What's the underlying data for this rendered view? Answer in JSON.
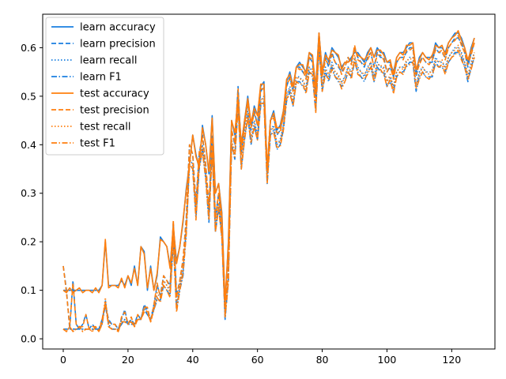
{
  "chart_data": {
    "type": "line",
    "title": "",
    "xlabel": "",
    "ylabel": "",
    "xlim": [
      -6.35,
      133.35
    ],
    "ylim": [
      -0.021,
      0.669
    ],
    "xticks": [
      0,
      20,
      40,
      60,
      80,
      100,
      120
    ],
    "yticks": [
      0.0,
      0.1,
      0.2,
      0.3,
      0.4,
      0.5,
      0.6
    ],
    "ytick_labels": [
      "0.0",
      "0.1",
      "0.2",
      "0.3",
      "0.4",
      "0.5",
      "0.6"
    ],
    "legend_position": "top-left",
    "grid": false,
    "colors": {
      "learn": "#1f77b4",
      "test": "#ff7f0e",
      "learn_bright": "#1a7fe0"
    },
    "series_labels": [
      {
        "name": "learn accuracy",
        "color": "#1a7fe0",
        "dash": "solid"
      },
      {
        "name": "learn precision",
        "color": "#1a7fe0",
        "dash": "dashed"
      },
      {
        "name": "learn recall",
        "color": "#1a7fe0",
        "dash": "dotted"
      },
      {
        "name": "learn F1",
        "color": "#1a7fe0",
        "dash": "dashdot"
      },
      {
        "name": "test accuracy",
        "color": "#ff7f0e",
        "dash": "solid"
      },
      {
        "name": "test precision",
        "color": "#ff7f0e",
        "dash": "dashed"
      },
      {
        "name": "test recall",
        "color": "#ff7f0e",
        "dash": "dotted"
      },
      {
        "name": "test F1",
        "color": "#ff7f0e",
        "dash": "dashdot"
      }
    ],
    "x_start": 0,
    "accuracy_values": [
      0.1,
      0.1,
      0.1,
      0.1,
      0.1,
      0.1,
      0.1,
      0.1,
      0.1,
      0.1,
      0.1,
      0.1,
      0.11,
      0.2,
      0.11,
      0.11,
      0.11,
      0.11,
      0.12,
      0.11,
      0.13,
      0.11,
      0.15,
      0.11,
      0.19,
      0.18,
      0.1,
      0.15,
      0.1,
      0.13,
      0.21,
      0.2,
      0.19,
      0.15,
      0.23,
      0.16,
      0.19,
      0.24,
      0.31,
      0.36,
      0.42,
      0.38,
      0.35,
      0.44,
      0.4,
      0.34,
      0.46,
      0.3,
      0.32,
      0.26,
      0.07,
      0.2,
      0.45,
      0.42,
      0.5,
      0.4,
      0.45,
      0.5,
      0.44,
      0.48,
      0.46,
      0.52,
      0.53,
      0.35,
      0.45,
      0.47,
      0.43,
      0.44,
      0.47,
      0.53,
      0.55,
      0.52,
      0.56,
      0.57,
      0.56,
      0.55,
      0.59,
      0.58,
      0.52,
      0.63,
      0.55,
      0.59,
      0.57,
      0.6,
      0.59,
      0.58,
      0.56,
      0.57,
      0.57,
      0.58,
      0.59,
      0.59,
      0.58,
      0.57,
      0.59,
      0.6,
      0.58,
      0.6,
      0.59,
      0.59,
      0.57,
      0.57,
      0.55,
      0.58,
      0.59,
      0.59,
      0.6,
      0.61,
      0.61,
      0.55,
      0.58,
      0.59,
      0.58,
      0.58,
      0.58,
      0.61,
      0.6,
      0.6,
      0.59,
      0.61,
      0.62,
      0.63,
      0.63,
      0.62,
      0.6,
      0.57,
      0.6,
      0.62
    ],
    "precision_values": [
      0.15,
      0.1,
      0.02,
      0.12,
      0.03,
      0.02,
      0.03,
      0.05,
      0.02,
      0.03,
      0.02,
      0.02,
      0.04,
      0.07,
      0.04,
      0.03,
      0.03,
      0.02,
      0.04,
      0.06,
      0.03,
      0.04,
      0.03,
      0.05,
      0.04,
      0.07,
      0.06,
      0.04,
      0.07,
      0.11,
      0.09,
      0.13,
      0.12,
      0.11,
      0.24,
      0.09,
      0.12,
      0.16,
      0.25,
      0.4,
      0.38,
      0.28,
      0.38,
      0.42,
      0.36,
      0.27,
      0.42,
      0.25,
      0.3,
      0.24,
      0.05,
      0.15,
      0.43,
      0.4,
      0.52,
      0.38,
      0.44,
      0.49,
      0.43,
      0.47,
      0.44,
      0.51,
      0.52,
      0.35,
      0.45,
      0.46,
      0.42,
      0.43,
      0.46,
      0.52,
      0.54,
      0.51,
      0.56,
      0.56,
      0.55,
      0.54,
      0.58,
      0.57,
      0.5,
      0.63,
      0.54,
      0.58,
      0.56,
      0.59,
      0.57,
      0.56,
      0.55,
      0.56,
      0.58,
      0.57,
      0.6,
      0.58,
      0.57,
      0.56,
      0.58,
      0.59,
      0.56,
      0.59,
      0.58,
      0.58,
      0.55,
      0.56,
      0.54,
      0.57,
      0.58,
      0.58,
      0.59,
      0.6,
      0.6,
      0.54,
      0.57,
      0.58,
      0.57,
      0.57,
      0.57,
      0.6,
      0.59,
      0.59,
      0.58,
      0.6,
      0.61,
      0.62,
      0.62,
      0.61,
      0.59,
      0.56,
      0.59,
      0.61
    ],
    "recall_values": [
      0.02,
      0.02,
      0.02,
      0.02,
      0.02,
      0.02,
      0.02,
      0.02,
      0.02,
      0.02,
      0.02,
      0.02,
      0.03,
      0.08,
      0.03,
      0.02,
      0.02,
      0.02,
      0.03,
      0.04,
      0.03,
      0.03,
      0.03,
      0.04,
      0.04,
      0.07,
      0.05,
      0.04,
      0.06,
      0.09,
      0.09,
      0.12,
      0.11,
      0.1,
      0.21,
      0.07,
      0.11,
      0.14,
      0.23,
      0.37,
      0.36,
      0.26,
      0.36,
      0.4,
      0.34,
      0.25,
      0.4,
      0.23,
      0.28,
      0.22,
      0.04,
      0.13,
      0.41,
      0.38,
      0.49,
      0.36,
      0.42,
      0.47,
      0.41,
      0.45,
      0.42,
      0.49,
      0.5,
      0.33,
      0.43,
      0.44,
      0.4,
      0.41,
      0.44,
      0.5,
      0.52,
      0.49,
      0.54,
      0.54,
      0.53,
      0.52,
      0.56,
      0.55,
      0.48,
      0.61,
      0.52,
      0.56,
      0.54,
      0.57,
      0.55,
      0.54,
      0.53,
      0.54,
      0.56,
      0.55,
      0.58,
      0.56,
      0.55,
      0.54,
      0.56,
      0.57,
      0.54,
      0.57,
      0.56,
      0.56,
      0.53,
      0.54,
      0.52,
      0.55,
      0.56,
      0.56,
      0.57,
      0.58,
      0.58,
      0.52,
      0.55,
      0.56,
      0.55,
      0.55,
      0.55,
      0.58,
      0.57,
      0.57,
      0.56,
      0.58,
      0.59,
      0.6,
      0.6,
      0.59,
      0.57,
      0.54,
      0.57,
      0.59
    ],
    "f1_values": [
      0.02,
      0.02,
      0.02,
      0.02,
      0.02,
      0.02,
      0.02,
      0.02,
      0.02,
      0.02,
      0.02,
      0.02,
      0.03,
      0.07,
      0.03,
      0.02,
      0.02,
      0.02,
      0.03,
      0.04,
      0.03,
      0.03,
      0.03,
      0.04,
      0.04,
      0.06,
      0.05,
      0.04,
      0.06,
      0.08,
      0.08,
      0.11,
      0.1,
      0.09,
      0.2,
      0.06,
      0.1,
      0.13,
      0.22,
      0.36,
      0.35,
      0.25,
      0.35,
      0.39,
      0.33,
      0.24,
      0.39,
      0.22,
      0.27,
      0.21,
      0.04,
      0.12,
      0.4,
      0.37,
      0.48,
      0.35,
      0.41,
      0.46,
      0.4,
      0.44,
      0.41,
      0.48,
      0.49,
      0.32,
      0.42,
      0.43,
      0.39,
      0.4,
      0.43,
      0.49,
      0.51,
      0.48,
      0.53,
      0.53,
      0.52,
      0.51,
      0.55,
      0.54,
      0.47,
      0.6,
      0.51,
      0.55,
      0.53,
      0.56,
      0.54,
      0.53,
      0.52,
      0.53,
      0.55,
      0.54,
      0.57,
      0.55,
      0.54,
      0.53,
      0.55,
      0.56,
      0.53,
      0.56,
      0.55,
      0.55,
      0.52,
      0.53,
      0.51,
      0.54,
      0.55,
      0.55,
      0.56,
      0.57,
      0.57,
      0.51,
      0.54,
      0.55,
      0.54,
      0.54,
      0.54,
      0.57,
      0.56,
      0.56,
      0.55,
      0.57,
      0.58,
      0.59,
      0.59,
      0.58,
      0.56,
      0.53,
      0.56,
      0.58
    ],
    "test_offset": [
      0.0,
      -0.005,
      0.005,
      -0.005,
      0.0,
      0.005,
      -0.005,
      0.0
    ]
  }
}
